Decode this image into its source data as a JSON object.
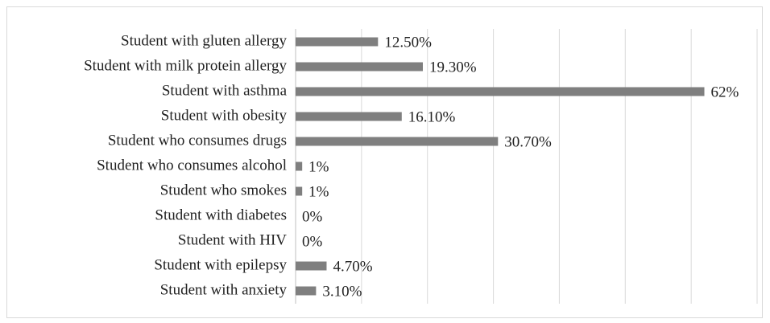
{
  "chart_data": {
    "type": "hbar",
    "categories": [
      "Student with gluten allergy",
      "Student with milk protein allergy",
      "Student with asthma",
      "Student with obesity",
      "Student who consumes drugs",
      "Student who consumes alcohol",
      "Student who smokes",
      "Student with diabetes",
      "Student with HIV",
      "Student with epilepsy",
      "Student with anxiety"
    ],
    "values": [
      12.5,
      19.3,
      62,
      16.1,
      30.7,
      1,
      1,
      0,
      0,
      4.7,
      3.1
    ],
    "value_labels": [
      "12.50%",
      "19.30%",
      "62%",
      "16.10%",
      "30.70%",
      "1%",
      "1%",
      "0%",
      "0%",
      "4.70%",
      "3.10%"
    ],
    "color": "#7f7f7f",
    "xlim": [
      0,
      70
    ],
    "xticks": [
      0,
      10,
      20,
      30,
      40,
      50,
      60,
      70
    ],
    "grid": true
  }
}
